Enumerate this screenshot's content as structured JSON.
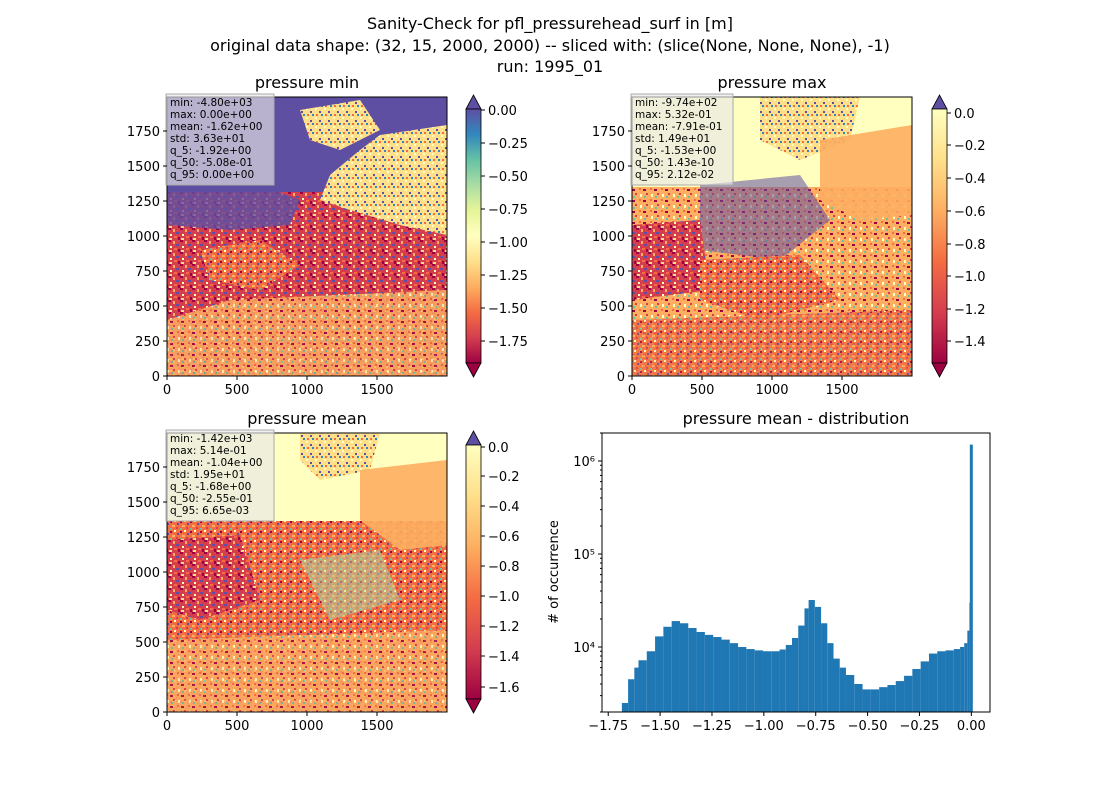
{
  "figure": {
    "title_lines": [
      "Sanity-Check for pfl_pressurehead_surf in [m]",
      "original data shape: (32, 15, 2000, 2000) -- sliced with: (slice(None, None, None), -1)",
      "run: 1995_01"
    ]
  },
  "chart_data": [
    {
      "type": "heatmap",
      "title": "pressure min",
      "colormap": "Spectral",
      "xticks": [
        0,
        500,
        1000,
        1500
      ],
      "yticks": [
        0,
        250,
        500,
        750,
        1000,
        1250,
        1500,
        1750
      ],
      "xlim": [
        0,
        2000
      ],
      "ylim": [
        0,
        2000
      ],
      "colorbar": {
        "min": -1.92,
        "max": 0.0,
        "extend": "both",
        "ticks": [
          "0.00",
          "−0.25",
          "−0.50",
          "−0.75",
          "−1.00",
          "−1.25",
          "−1.50",
          "−1.75"
        ],
        "tick_values": [
          0,
          -0.25,
          -0.5,
          -0.75,
          -1.0,
          -1.25,
          -1.5,
          -1.75
        ]
      },
      "stats": [
        "min: -4.80e+03",
        "max: 0.00e+00",
        "mean: -1.62e+00",
        "std: 3.63e+01",
        "q_5: -1.92e+00",
        "q_50: -5.08e-01",
        "q_95: 0.00e+00"
      ]
    },
    {
      "type": "heatmap",
      "title": "pressure max",
      "colormap": "Spectral",
      "xticks": [
        0,
        500,
        1000,
        1500
      ],
      "yticks": [
        0,
        250,
        500,
        750,
        1000,
        1250,
        1500,
        1750
      ],
      "xlim": [
        0,
        2000
      ],
      "ylim": [
        0,
        2000
      ],
      "colorbar": {
        "min": -1.53,
        "max": 0.02,
        "extend": "both",
        "ticks": [
          "0.0",
          "−0.2",
          "−0.4",
          "−0.6",
          "−0.8",
          "−1.0",
          "−1.2",
          "−1.4"
        ],
        "tick_values": [
          0,
          -0.2,
          -0.4,
          -0.6,
          -0.8,
          -1.0,
          -1.2,
          -1.4
        ]
      },
      "stats": [
        "min: -9.74e+02",
        "max: 5.32e-01",
        "mean: -7.91e-01",
        "std: 1.49e+01",
        "q_5: -1.53e+00",
        "q_50: 1.43e-10",
        "q_95: 2.12e-02"
      ]
    },
    {
      "type": "heatmap",
      "title": "pressure mean",
      "colormap": "Spectral",
      "xticks": [
        0,
        500,
        1000,
        1500
      ],
      "yticks": [
        0,
        250,
        500,
        750,
        1000,
        1250,
        1500,
        1750
      ],
      "xlim": [
        0,
        2000
      ],
      "ylim": [
        0,
        2000
      ],
      "colorbar": {
        "min": -1.68,
        "max": 0.0066,
        "extend": "both",
        "ticks": [
          "0.0",
          "−0.2",
          "−0.4",
          "−0.6",
          "−0.8",
          "−1.0",
          "−1.2",
          "−1.4",
          "−1.6"
        ],
        "tick_values": [
          0,
          -0.2,
          -0.4,
          -0.6,
          -0.8,
          -1.0,
          -1.2,
          -1.4,
          -1.6
        ]
      },
      "stats": [
        "min: -1.42e+03",
        "max: 5.14e-01",
        "mean: -1.04e+00",
        "std: 1.95e+01",
        "q_5: -1.68e+00",
        "q_50: -2.55e-01",
        "q_95: 6.65e-03"
      ]
    },
    {
      "type": "bar",
      "title": "pressure mean - distribution",
      "ylabel": "# of occurrence",
      "xlabel": "",
      "yscale": "log",
      "ylim": [
        2000,
        2000000
      ],
      "xlim": [
        -1.78,
        0.09
      ],
      "xticks": [
        "−1.75",
        "−1.50",
        "−1.25",
        "−1.00",
        "−0.75",
        "−0.50",
        "−0.25",
        "0.00"
      ],
      "xtick_values": [
        -1.75,
        -1.5,
        -1.25,
        -1.0,
        -0.75,
        -0.5,
        -0.25,
        0.0
      ],
      "yticks": [
        "10⁴",
        "10⁵",
        "10⁶"
      ],
      "ytick_values": [
        10000,
        100000,
        1000000
      ],
      "bar_color": "#1f77b4",
      "bin_width": 0.0084,
      "bins": [
        {
          "x": -1.68,
          "y": 2500
        },
        {
          "x": -1.65,
          "y": 4500
        },
        {
          "x": -1.62,
          "y": 6000
        },
        {
          "x": -1.6,
          "y": 7200
        },
        {
          "x": -1.56,
          "y": 9000
        },
        {
          "x": -1.52,
          "y": 13000
        },
        {
          "x": -1.48,
          "y": 16500
        },
        {
          "x": -1.44,
          "y": 19000
        },
        {
          "x": -1.4,
          "y": 18000
        },
        {
          "x": -1.36,
          "y": 16000
        },
        {
          "x": -1.32,
          "y": 14500
        },
        {
          "x": -1.28,
          "y": 13500
        },
        {
          "x": -1.24,
          "y": 12800
        },
        {
          "x": -1.2,
          "y": 12000
        },
        {
          "x": -1.16,
          "y": 11000
        },
        {
          "x": -1.12,
          "y": 10000
        },
        {
          "x": -1.08,
          "y": 9500
        },
        {
          "x": -1.04,
          "y": 9200
        },
        {
          "x": -1.0,
          "y": 9000
        },
        {
          "x": -0.96,
          "y": 9000
        },
        {
          "x": -0.92,
          "y": 9400
        },
        {
          "x": -0.89,
          "y": 10500
        },
        {
          "x": -0.86,
          "y": 12500
        },
        {
          "x": -0.83,
          "y": 17000
        },
        {
          "x": -0.8,
          "y": 26000
        },
        {
          "x": -0.78,
          "y": 32000
        },
        {
          "x": -0.75,
          "y": 27000
        },
        {
          "x": -0.72,
          "y": 18000
        },
        {
          "x": -0.69,
          "y": 11000
        },
        {
          "x": -0.66,
          "y": 7500
        },
        {
          "x": -0.63,
          "y": 6000
        },
        {
          "x": -0.6,
          "y": 5000
        },
        {
          "x": -0.56,
          "y": 4000
        },
        {
          "x": -0.52,
          "y": 3500
        },
        {
          "x": -0.48,
          "y": 3500
        },
        {
          "x": -0.44,
          "y": 3700
        },
        {
          "x": -0.4,
          "y": 3900
        },
        {
          "x": -0.36,
          "y": 4300
        },
        {
          "x": -0.32,
          "y": 4900
        },
        {
          "x": -0.28,
          "y": 5800
        },
        {
          "x": -0.24,
          "y": 7000
        },
        {
          "x": -0.2,
          "y": 8500
        },
        {
          "x": -0.16,
          "y": 9000
        },
        {
          "x": -0.12,
          "y": 9200
        },
        {
          "x": -0.08,
          "y": 9500
        },
        {
          "x": -0.05,
          "y": 10000
        },
        {
          "x": -0.03,
          "y": 11000
        },
        {
          "x": -0.015,
          "y": 15000
        },
        {
          "x": -0.005,
          "y": 30000
        },
        {
          "x": 0.0,
          "y": 1500000
        }
      ]
    }
  ]
}
